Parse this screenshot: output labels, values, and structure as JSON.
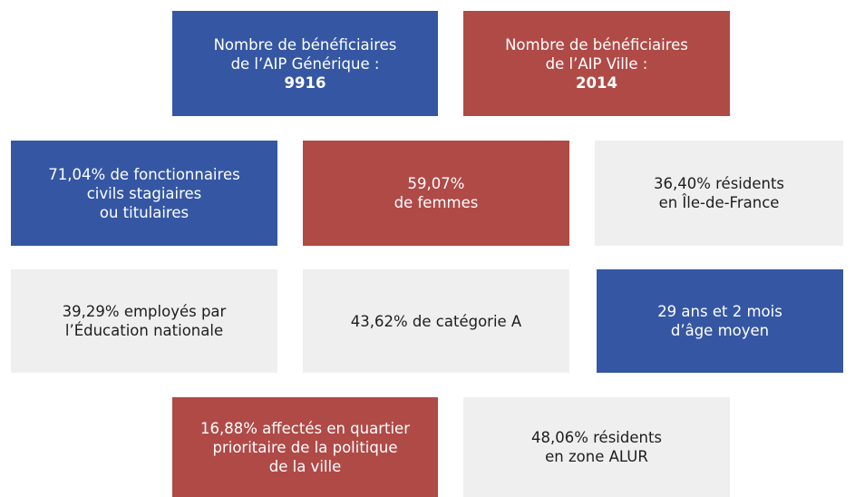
{
  "boxes": [
    {
      "color": "#3557a3",
      "lines": [
        "Nombre de bénéficiaires",
        "de l’AIP Générique :"
      ],
      "value": "9916"
    },
    {
      "color": "#b04a47",
      "lines": [
        "Nombre de bénéficiaires",
        "de l’AIP Ville :"
      ],
      "value": "2014"
    },
    {
      "color": "#3557a3",
      "lines": [
        "71,04% de fonctionnaires",
        "civils stagiaires",
        "ou titulaires"
      ]
    },
    {
      "color": "#b04a47",
      "lines": [
        "59,07%",
        "de femmes"
      ]
    },
    {
      "color": "#efefef",
      "lines": [
        "36,40% résidents",
        "en Île-de-France"
      ]
    },
    {
      "color": "#efefef",
      "lines": [
        "39,29% employés par",
        "l’Éducation nationale"
      ]
    },
    {
      "color": "#efefef",
      "lines": [
        "43,62% de catégorie A"
      ]
    },
    {
      "color": "#3557a3",
      "lines": [
        "29 ans et 2 mois",
        "d’âge moyen"
      ]
    },
    {
      "color": "#b04a47",
      "lines": [
        "16,88% affectés en quartier",
        "prioritaire de la politique",
        "de la ville"
      ]
    },
    {
      "color": "#efefef",
      "lines": [
        "48,06% résidents",
        "en zone ALUR"
      ]
    }
  ]
}
